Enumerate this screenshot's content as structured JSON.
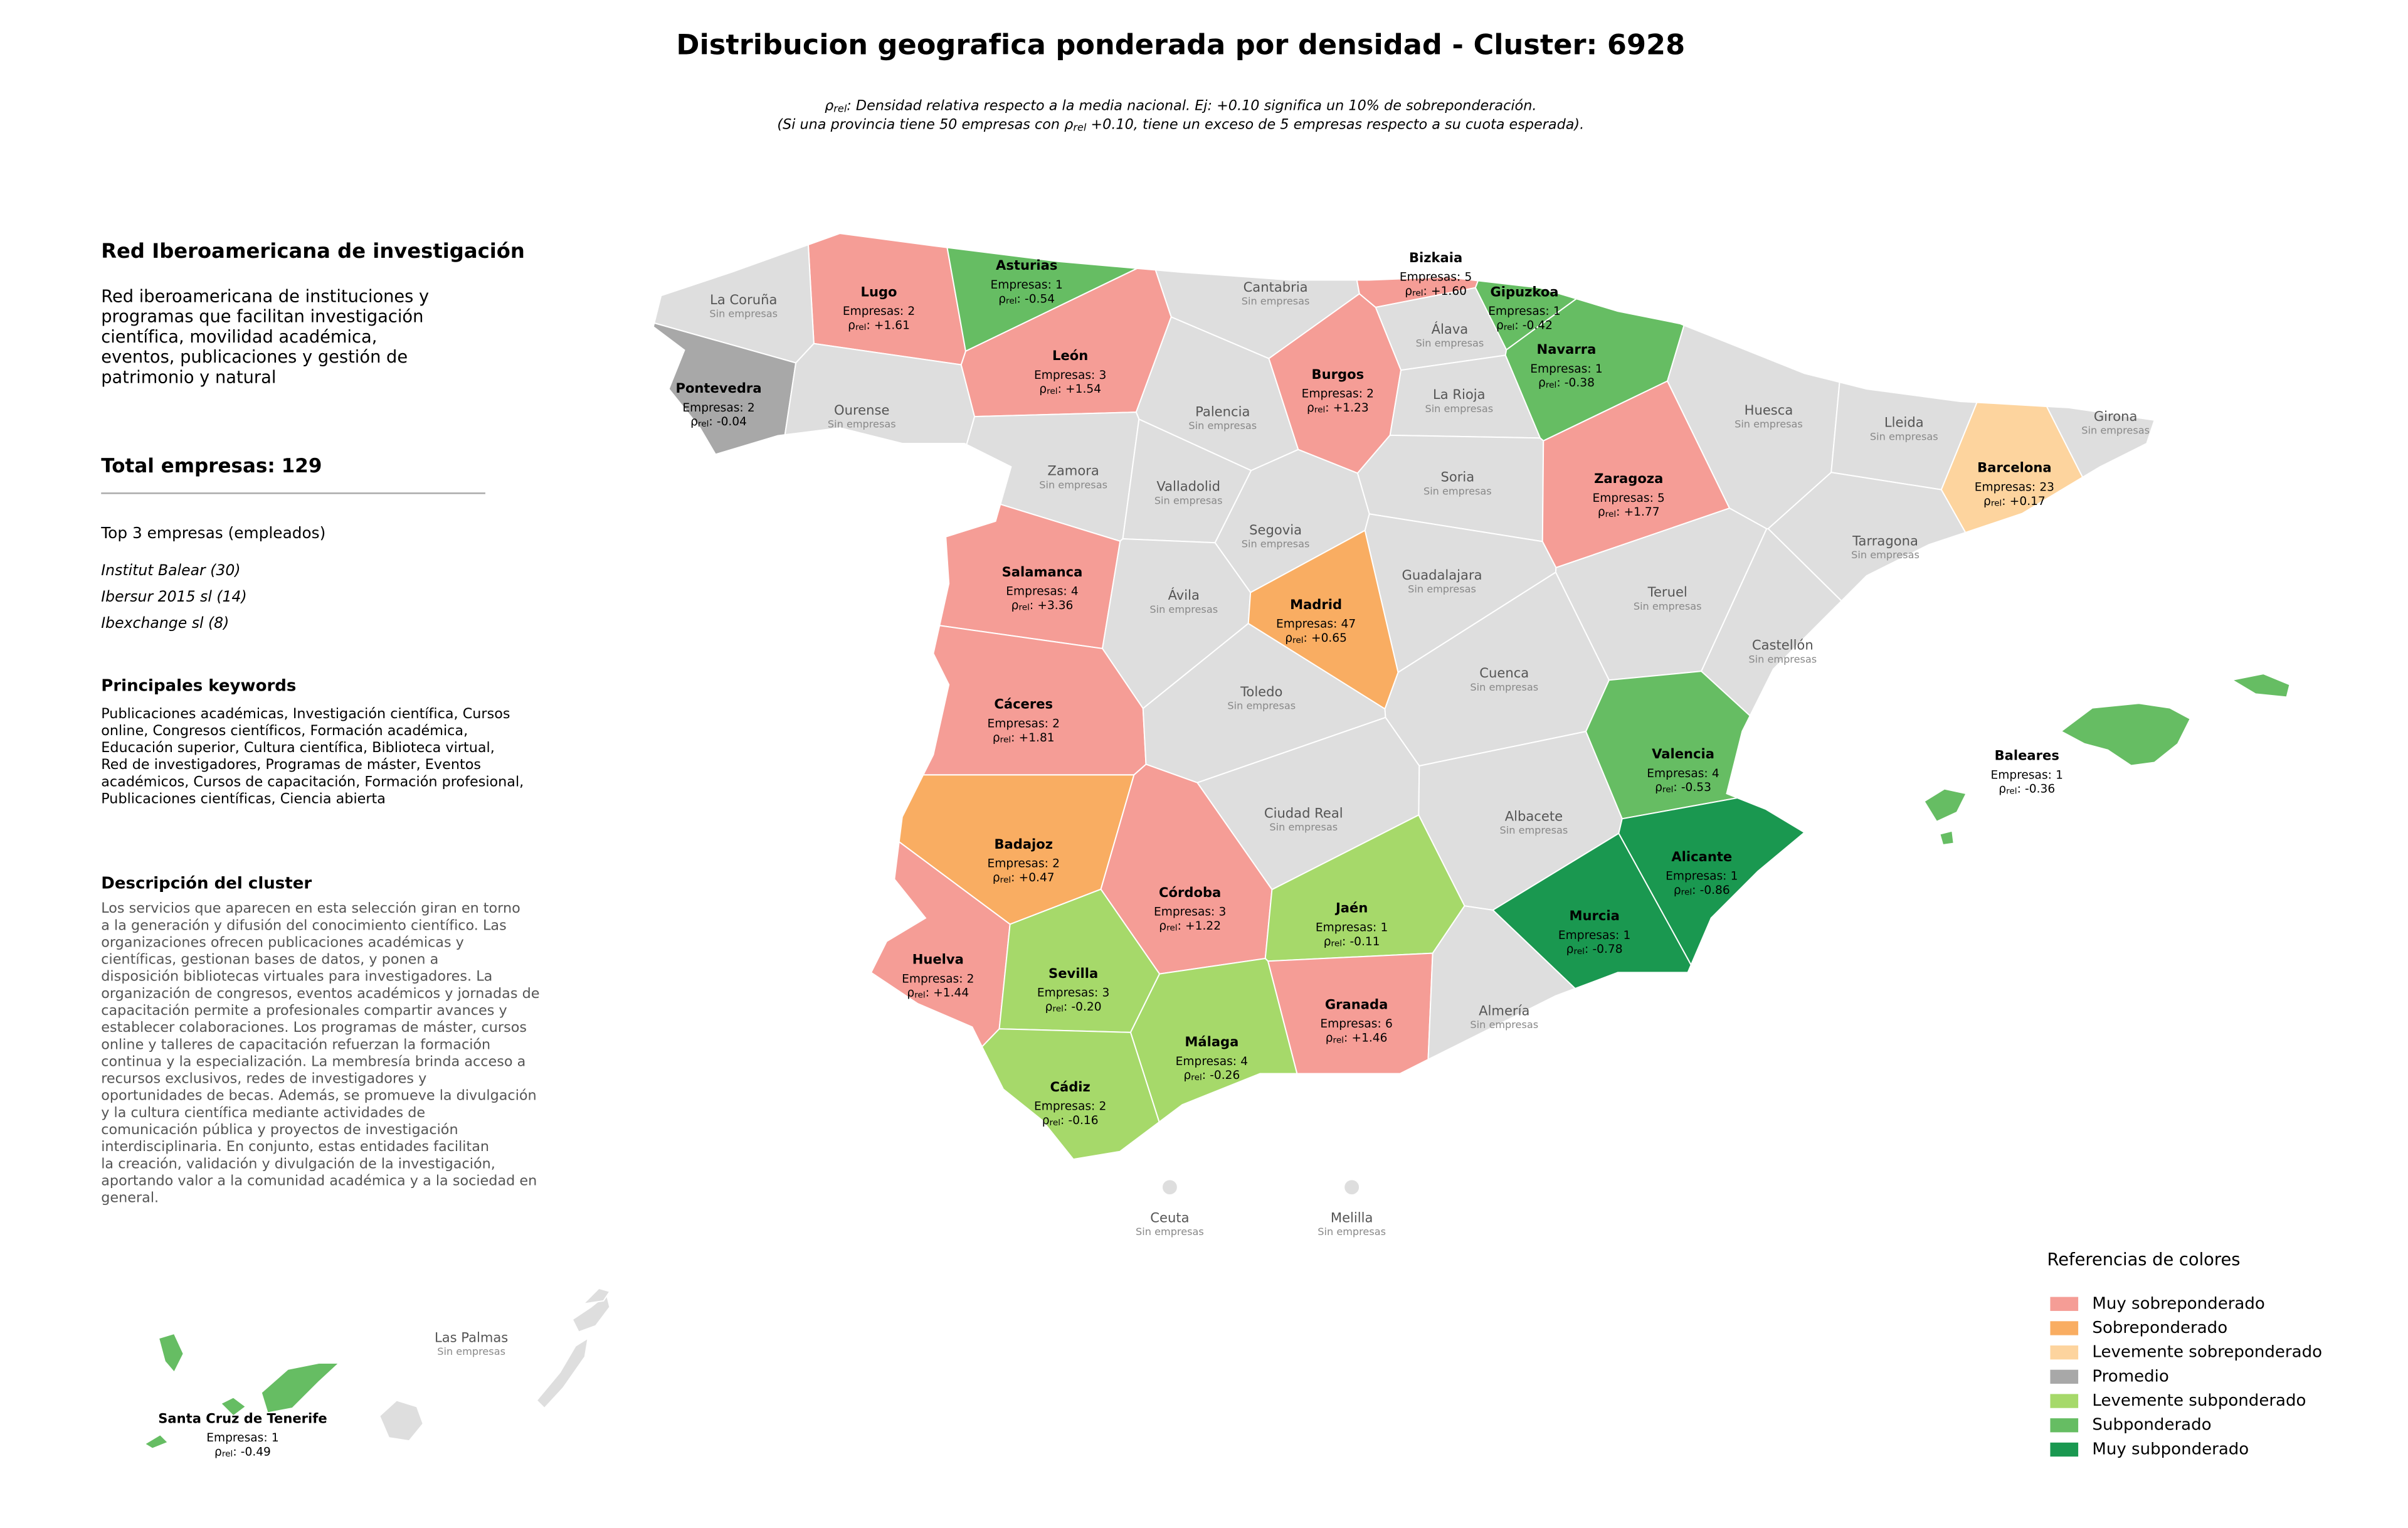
{
  "title": "Distribucion geografica ponderada por densidad - Cluster: 6928",
  "note": {
    "symbol": "ρ",
    "sub": "rel",
    "line1": ": Densidad relativa respecto a la media nacional. Ej: +0.10 significa un 10% de sobreponderación.",
    "line2_start": "(Si una provincia tiene 50 empresas con ",
    "line2_end": " +0.10, tiene un exceso de 5 empresas respecto a su cuota esperada)."
  },
  "sidebar": {
    "title": "Red Iberoamericana de investigación",
    "summary_lines": [
      "Red iberoamericana de instituciones y",
      "programas que facilitan investigación",
      "científica, movilidad académica,",
      "eventos, publicaciones y gestión de",
      "patrimonio y natural"
    ],
    "total_label": "Total empresas:",
    "total": 129,
    "top_title": "Top 3 empresas (empleados)",
    "top": [
      "Institut Balear (30)",
      "Ibersur 2015 sl (14)",
      "Ibexchange sl (8)"
    ],
    "keywords_title": "Principales keywords",
    "keywords_lines": [
      "Publicaciones académicas, Investigación científica, Cursos",
      "online, Congresos científicos, Formación académica,",
      "Educación superior, Cultura científica, Biblioteca virtual,",
      "Red de investigadores, Programas de máster, Eventos",
      "académicos, Cursos de capacitación, Formación profesional,",
      "Publicaciones científicas, Ciencia abierta"
    ],
    "description_title": "Descripción del cluster",
    "description_lines": [
      "Los servicios que aparecen en esta selección giran en torno",
      "a la generación y difusión del conocimiento científico. Las",
      "organizaciones ofrecen publicaciones académicas y",
      "científicas, gestionan bases de datos, y ponen a",
      "disposición bibliotecas virtuales para investigadores. La",
      "organización de congresos, eventos académicos y jornadas de",
      "capacitación permite a profesionales compartir avances y",
      "establecer colaboraciones. Los programas de máster, cursos",
      "online y talleres de capacitación refuerzan la formación",
      "continua y la especialización. La membresía brinda acceso a",
      "recursos exclusivos, redes de investigadores y",
      "oportunidades de becas. Además, se promueve la divulgación",
      "y la cultura científica mediante actividades de",
      "comunicación pública y proyectos de investigación",
      "interdisciplinaria. En conjunto, estas entidades facilitan",
      "la creación, validación y divulgación de la investigación,",
      "aportando valor a la comunidad académica y a la sociedad en",
      "general."
    ]
  },
  "map": {
    "companies_label": "Empresas:",
    "no_companies": "Sin empresas",
    "rho_symbol": "ρ",
    "rho_sub": "rel",
    "rho_sep": ":",
    "provinces": [
      {
        "name": "Lugo",
        "companies": 2,
        "rho": 1.61,
        "rho_label": "+1.61",
        "category": "Muy sobreponderado"
      },
      {
        "name": "Asturias",
        "companies": 1,
        "rho": -0.54,
        "rho_label": "-0.54",
        "category": "Subponderado"
      },
      {
        "name": "Cantabria"
      },
      {
        "name": "Bizkaia",
        "companies": 5,
        "rho": 1.6,
        "rho_label": "+1.60",
        "category": "Muy sobreponderado"
      },
      {
        "name": "Gipuzkoa",
        "companies": 1,
        "rho": -0.42,
        "rho_label": "-0.42",
        "category": "Subponderado"
      },
      {
        "name": "Álava"
      },
      {
        "name": "Navarra",
        "companies": 1,
        "rho": -0.38,
        "rho_label": "-0.38",
        "category": "Subponderado"
      },
      {
        "name": "La Coruña"
      },
      {
        "name": "Pontevedra",
        "companies": 2,
        "rho": -0.04,
        "rho_label": "-0.04",
        "category": "Promedio"
      },
      {
        "name": "Ourense"
      },
      {
        "name": "León",
        "companies": 3,
        "rho": 1.54,
        "rho_label": "+1.54",
        "category": "Muy sobreponderado"
      },
      {
        "name": "Palencia"
      },
      {
        "name": "Burgos",
        "companies": 2,
        "rho": 1.23,
        "rho_label": "+1.23",
        "category": "Muy sobreponderado"
      },
      {
        "name": "La Rioja"
      },
      {
        "name": "Huesca"
      },
      {
        "name": "Lleida"
      },
      {
        "name": "Girona"
      },
      {
        "name": "Barcelona",
        "companies": 23,
        "rho": 0.17,
        "rho_label": "+0.17",
        "category": "Levemente sobreponderado"
      },
      {
        "name": "Zamora"
      },
      {
        "name": "Valladolid"
      },
      {
        "name": "Soria"
      },
      {
        "name": "Zaragoza",
        "companies": 5,
        "rho": 1.77,
        "rho_label": "+1.77",
        "category": "Muy sobreponderado"
      },
      {
        "name": "Tarragona"
      },
      {
        "name": "Segovia"
      },
      {
        "name": "Salamanca",
        "companies": 4,
        "rho": 3.36,
        "rho_label": "+3.36",
        "category": "Muy sobreponderado"
      },
      {
        "name": "Ávila"
      },
      {
        "name": "Madrid",
        "companies": 47,
        "rho": 0.65,
        "rho_label": "+0.65",
        "category": "Sobreponderado"
      },
      {
        "name": "Guadalajara"
      },
      {
        "name": "Teruel"
      },
      {
        "name": "Castellón"
      },
      {
        "name": "Cáceres",
        "companies": 2,
        "rho": 1.81,
        "rho_label": "+1.81",
        "category": "Muy sobreponderado"
      },
      {
        "name": "Toledo"
      },
      {
        "name": "Cuenca"
      },
      {
        "name": "Valencia",
        "companies": 4,
        "rho": -0.53,
        "rho_label": "-0.53",
        "category": "Subponderado"
      },
      {
        "name": "Badajoz",
        "companies": 2,
        "rho": 0.47,
        "rho_label": "+0.47",
        "category": "Sobreponderado"
      },
      {
        "name": "Ciudad Real"
      },
      {
        "name": "Albacete"
      },
      {
        "name": "Alicante",
        "companies": 1,
        "rho": -0.86,
        "rho_label": "-0.86",
        "category": "Muy subponderado"
      },
      {
        "name": "Córdoba",
        "companies": 3,
        "rho": 1.22,
        "rho_label": "+1.22",
        "category": "Muy sobreponderado"
      },
      {
        "name": "Jaén",
        "companies": 1,
        "rho": -0.11,
        "rho_label": "-0.11",
        "category": "Levemente subponderado"
      },
      {
        "name": "Murcia",
        "companies": 1,
        "rho": -0.78,
        "rho_label": "-0.78",
        "category": "Muy subponderado"
      },
      {
        "name": "Huelva",
        "companies": 2,
        "rho": 1.44,
        "rho_label": "+1.44",
        "category": "Muy sobreponderado"
      },
      {
        "name": "Sevilla",
        "companies": 3,
        "rho": -0.2,
        "rho_label": "-0.20",
        "category": "Levemente subponderado"
      },
      {
        "name": "Granada",
        "companies": 6,
        "rho": 1.46,
        "rho_label": "+1.46",
        "category": "Muy sobreponderado"
      },
      {
        "name": "Almería"
      },
      {
        "name": "Málaga",
        "companies": 4,
        "rho": -0.26,
        "rho_label": "-0.26",
        "category": "Levemente subponderado"
      },
      {
        "name": "Cádiz",
        "companies": 2,
        "rho": -0.16,
        "rho_label": "-0.16",
        "category": "Levemente subponderado"
      },
      {
        "name": "Baleares",
        "companies": 1,
        "rho": -0.36,
        "rho_label": "-0.36",
        "category": "Subponderado"
      },
      {
        "name": "Santa Cruz de Tenerife",
        "companies": 1,
        "rho": -0.49,
        "rho_label": "-0.49",
        "category": "Subponderado"
      },
      {
        "name": "Las Palmas"
      },
      {
        "name": "Ceuta"
      },
      {
        "name": "Melilla"
      }
    ]
  },
  "legend": {
    "title": "Referencias de colores",
    "items": [
      {
        "name": "Muy sobreponderado",
        "color": "#f59d96"
      },
      {
        "name": "Sobreponderado",
        "color": "#f9ad62"
      },
      {
        "name": "Levemente sobreponderado",
        "color": "#fdd49e"
      },
      {
        "name": "Promedio",
        "color": "#a8a8a8"
      },
      {
        "name": "Levemente subponderado",
        "color": "#a6d96a"
      },
      {
        "name": "Subponderado",
        "color": "#66bd63"
      },
      {
        "name": "Muy subponderado",
        "color": "#1a9850"
      }
    ]
  }
}
